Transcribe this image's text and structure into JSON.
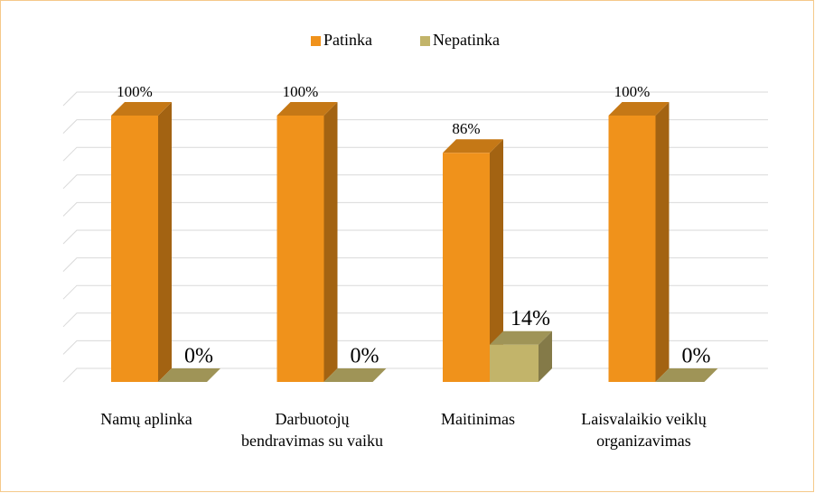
{
  "chart_data": {
    "type": "bar3d",
    "categories": [
      "Namų aplinka",
      "Darbuotojų bendravimas su vaiku",
      "Maitinimas",
      "Laisvalaikio veiklų organizavimas"
    ],
    "series": [
      {
        "name": "Patinka",
        "color": "#F0921B",
        "values": [
          100,
          100,
          86,
          100
        ],
        "value_labels": [
          "100%",
          "100%",
          "86%",
          "100%"
        ]
      },
      {
        "name": "Nepatinka",
        "color": "#C2B46A",
        "values": [
          0,
          0,
          14,
          0
        ],
        "value_labels": [
          "0%",
          "0%",
          "14%",
          "0%"
        ]
      }
    ],
    "ylim": [
      0,
      100
    ],
    "yticks": [
      0,
      10,
      20,
      30,
      40,
      50,
      60,
      70,
      80,
      90,
      100
    ],
    "grid": true,
    "legend": "top"
  }
}
